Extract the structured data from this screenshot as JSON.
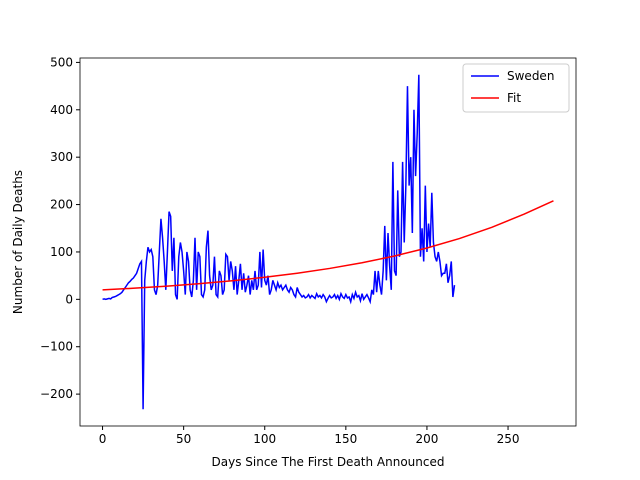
{
  "chart_data": {
    "type": "line",
    "xlabel": "Days Since The First Death Announced",
    "ylabel": "Number of Daily Deaths",
    "xlim": [
      -13.9,
      291.9
    ],
    "ylim": [
      -267.3,
      509.3
    ],
    "xticks": [
      0,
      50,
      100,
      150,
      200,
      250
    ],
    "yticks": [
      {
        "value": -200,
        "label": "−200"
      },
      {
        "value": -100,
        "label": "−100"
      },
      0,
      100,
      200,
      300,
      400,
      500
    ],
    "legend": "upper right",
    "series": [
      {
        "name": "Sweden",
        "color": "#0000ff",
        "x": [
          0,
          1,
          2,
          3,
          4,
          5,
          6,
          7,
          8,
          9,
          10,
          11,
          12,
          13,
          14,
          15,
          16,
          17,
          18,
          19,
          20,
          21,
          22,
          23,
          24,
          25,
          26,
          27,
          28,
          29,
          30,
          31,
          32,
          33,
          34,
          35,
          36,
          37,
          38,
          39,
          40,
          41,
          42,
          43,
          44,
          45,
          46,
          47,
          48,
          49,
          50,
          51,
          52,
          53,
          54,
          55,
          56,
          57,
          58,
          59,
          60,
          61,
          62,
          63,
          64,
          65,
          66,
          67,
          68,
          69,
          70,
          71,
          72,
          73,
          74,
          75,
          76,
          77,
          78,
          79,
          80,
          81,
          82,
          83,
          84,
          85,
          86,
          87,
          88,
          89,
          90,
          91,
          92,
          93,
          94,
          95,
          96,
          97,
          98,
          99,
          100,
          101,
          102,
          103,
          104,
          105,
          106,
          107,
          108,
          109,
          110,
          111,
          112,
          113,
          114,
          115,
          116,
          117,
          118,
          119,
          120,
          121,
          122,
          123,
          124,
          125,
          126,
          127,
          128,
          129,
          130,
          131,
          132,
          133,
          134,
          135,
          136,
          137,
          138,
          139,
          140,
          141,
          142,
          143,
          144,
          145,
          146,
          147,
          148,
          149,
          150,
          151,
          152,
          153,
          154,
          155,
          156,
          157,
          158,
          159,
          160,
          161,
          162,
          163,
          164,
          165,
          166,
          167,
          168,
          169,
          170,
          171,
          172,
          173,
          174,
          175,
          176,
          177,
          178,
          179,
          180,
          181,
          182,
          183,
          184,
          185,
          186,
          187,
          188,
          189,
          190,
          191,
          192,
          193,
          194,
          195,
          196,
          197,
          198,
          199,
          200,
          201,
          202,
          203,
          204,
          205,
          206,
          207,
          208,
          209,
          210,
          211,
          212,
          213,
          214,
          215,
          216,
          217
        ],
        "values": [
          0,
          1,
          0,
          1,
          2,
          1,
          4,
          5,
          6,
          8,
          10,
          12,
          15,
          20,
          25,
          30,
          35,
          38,
          42,
          45,
          50,
          55,
          65,
          75,
          80,
          -232,
          40,
          80,
          110,
          100,
          105,
          90,
          20,
          10,
          30,
          100,
          170,
          130,
          80,
          20,
          100,
          185,
          175,
          60,
          130,
          10,
          0,
          90,
          120,
          100,
          60,
          10,
          100,
          80,
          20,
          5,
          40,
          130,
          20,
          100,
          90,
          10,
          5,
          20,
          110,
          145,
          50,
          20,
          30,
          90,
          10,
          5,
          60,
          50,
          10,
          20,
          95,
          90,
          40,
          80,
          60,
          20,
          70,
          10,
          40,
          75,
          20,
          55,
          15,
          30,
          50,
          10,
          40,
          20,
          60,
          20,
          30,
          100,
          25,
          105,
          40,
          30,
          50,
          10,
          20,
          40,
          30,
          20,
          35,
          25,
          30,
          20,
          25,
          30,
          20,
          15,
          25,
          20,
          10,
          5,
          25,
          15,
          10,
          5,
          8,
          3,
          5,
          10,
          3,
          8,
          5,
          2,
          12,
          5,
          8,
          3,
          10,
          5,
          -5,
          2,
          8,
          3,
          5,
          10,
          2,
          8,
          0,
          12,
          5,
          2,
          10,
          3,
          5,
          -5,
          10,
          2,
          15,
          5,
          8,
          -3,
          12,
          0,
          5,
          10,
          3,
          -5,
          20,
          10,
          60,
          15,
          60,
          30,
          10,
          60,
          155,
          40,
          140,
          70,
          20,
          290,
          60,
          50,
          230,
          90,
          100,
          290,
          120,
          240,
          450,
          240,
          300,
          140,
          400,
          260,
          350,
          474,
          90,
          150,
          80,
          240,
          100,
          160,
          110,
          225,
          120,
          90,
          80,
          100,
          80,
          50,
          55,
          55,
          75,
          35,
          50,
          80,
          5,
          30
        ]
      },
      {
        "name": "Fit",
        "color": "#ff0000",
        "x": [
          0,
          20,
          40,
          60,
          80,
          100,
          120,
          140,
          160,
          180,
          200,
          220,
          240,
          260,
          278
        ],
        "values": [
          20,
          23.6,
          28.0,
          33.1,
          39.3,
          46.5,
          55.1,
          65.2,
          77.2,
          91.5,
          108.3,
          128.3,
          151.9,
          179.9,
          208
        ]
      }
    ]
  }
}
